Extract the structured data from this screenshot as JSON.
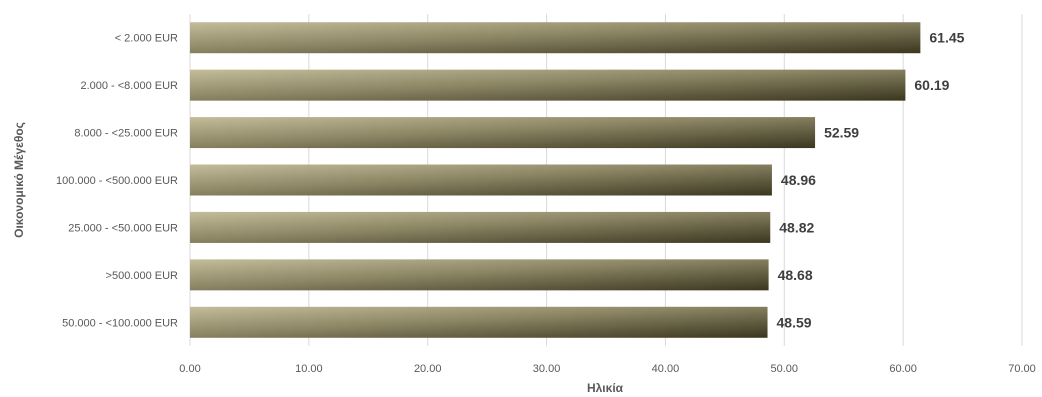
{
  "chart_data": {
    "type": "bar",
    "orientation": "horizontal",
    "categories": [
      "< 2.000 EUR",
      "2.000 - <8.000 EUR",
      "8.000 - <25.000 EUR",
      "100.000 - <500.000 EUR",
      "25.000 - <50.000 EUR",
      ">500.000 EUR",
      "50.000 - <100.000 EUR"
    ],
    "values": [
      61.45,
      60.19,
      52.59,
      48.96,
      48.82,
      48.68,
      48.59
    ],
    "data_labels": [
      "61.45",
      "60.19",
      "52.59",
      "48.96",
      "48.82",
      "48.68",
      "48.59"
    ],
    "xlabel": "Ηλικία",
    "ylabel": "Οικονομικό Μέγεθος",
    "xlim": [
      0,
      70
    ],
    "xticks": [
      "0.00",
      "10.00",
      "20.00",
      "30.00",
      "40.00",
      "50.00",
      "60.00",
      "70.00"
    ],
    "grid": true,
    "legend": "none",
    "colors": {
      "bar_light": "#bdb693",
      "bar_dark": "#3e3a22",
      "grid": "#d9d9d9"
    }
  }
}
